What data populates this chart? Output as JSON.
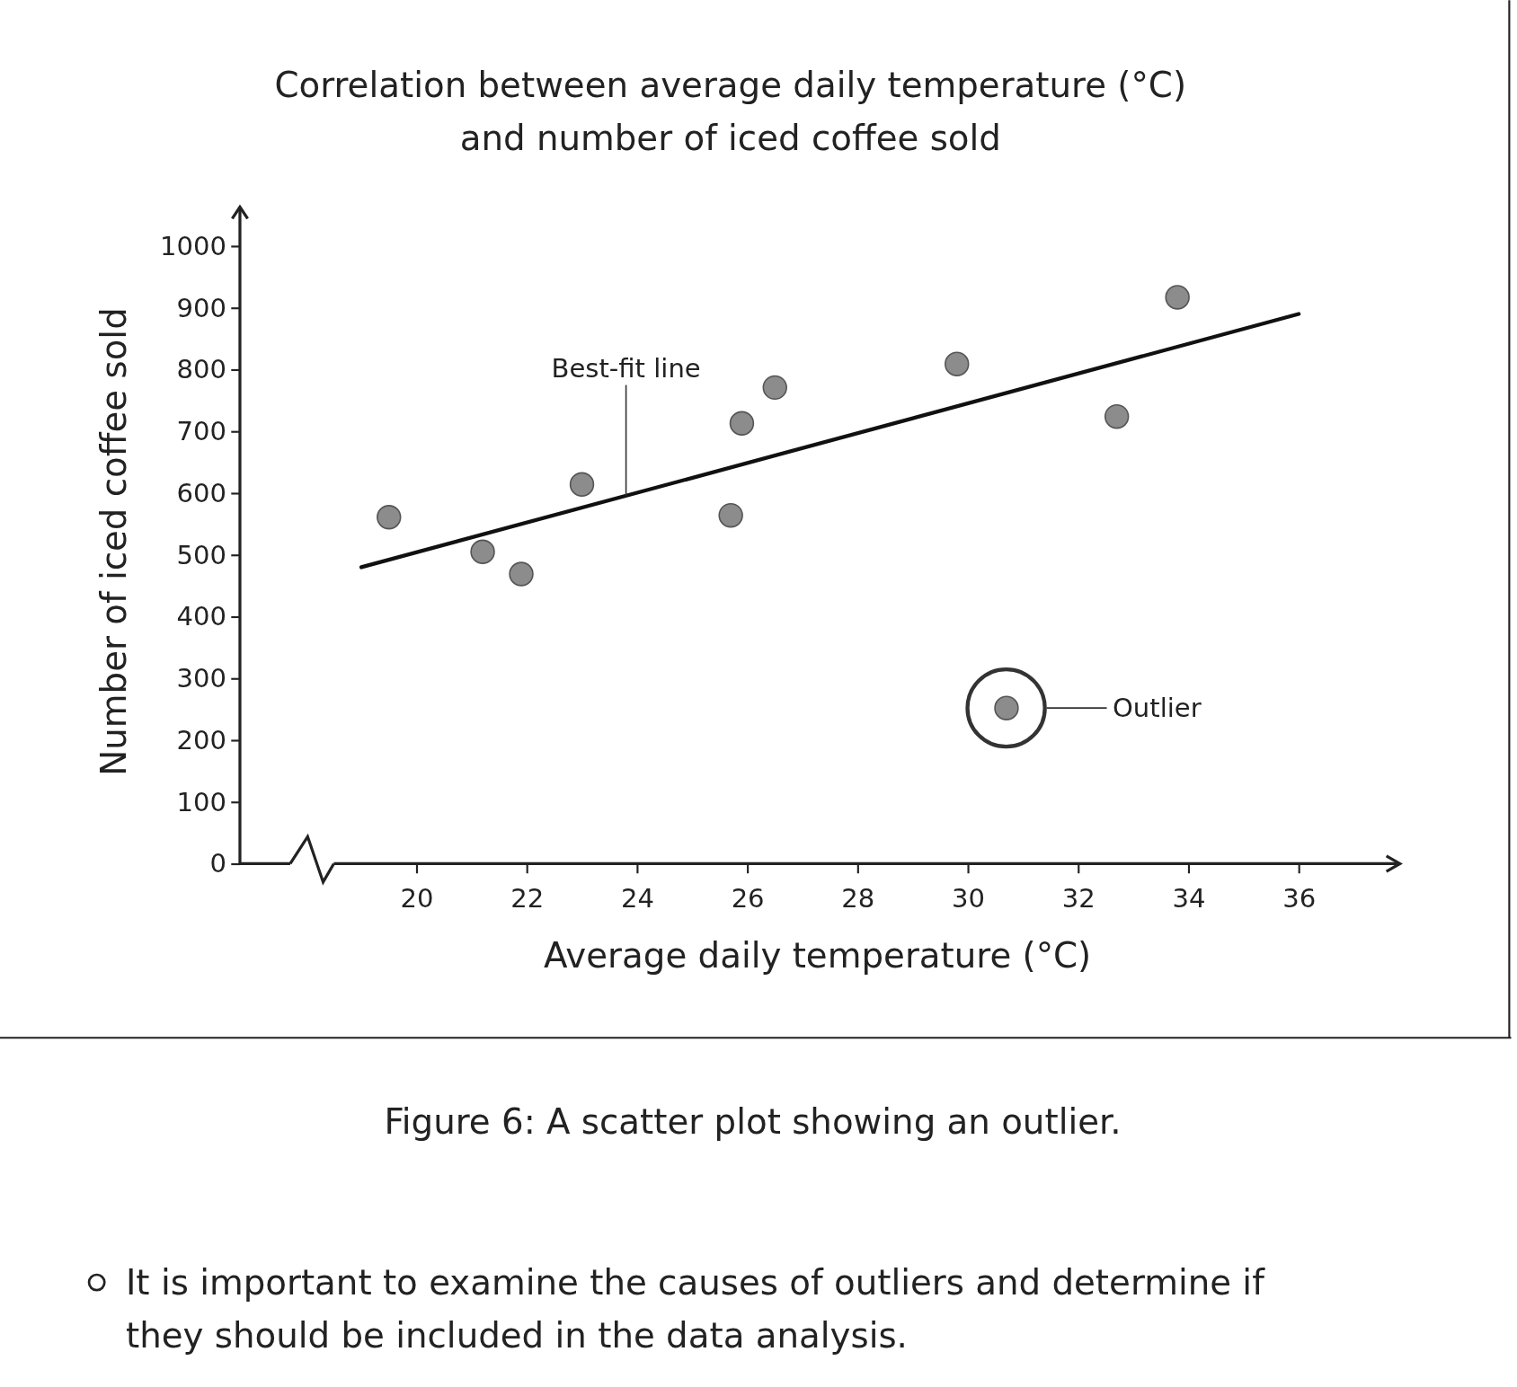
{
  "chart_data": {
    "type": "scatter",
    "title": "Correlation between average daily temperature (°C)\nand number of iced coffee sold",
    "xlabel": "Average daily temperature (°C)",
    "ylabel": "Number of iced coffee sold",
    "x": [
      19.5,
      21.2,
      21.9,
      23.0,
      25.7,
      25.9,
      26.5,
      29.8,
      30.7,
      32.7,
      33.8
    ],
    "series": [
      {
        "marker": "circle",
        "color": "#8c8c8c",
        "values": [
          561,
          505,
          469,
          614,
          564,
          713,
          771,
          809,
          252,
          724,
          917
        ]
      },
      {
        "type": "line",
        "color": "#111111",
        "x": [
          19.0,
          36.0
        ],
        "values": [
          480,
          890
        ]
      }
    ],
    "xlim": [
      18.5,
      37.8
    ],
    "ylim": [
      0,
      1060
    ],
    "xticks": [
      20,
      22,
      24,
      26,
      28,
      30,
      32,
      34,
      36
    ],
    "yticks": [
      0,
      100,
      200,
      300,
      400,
      500,
      600,
      700,
      800,
      900,
      1000
    ],
    "grid": false,
    "annotations": [
      {
        "text": "Best-fit line",
        "x": 23.8,
        "y": 596
      },
      "Outlier",
      "Figure 6: A scatter plot showing an outlier.",
      "It is important to examine the causes of outliers and determine if\nthey should be included in the data analysis."
    ]
  }
}
